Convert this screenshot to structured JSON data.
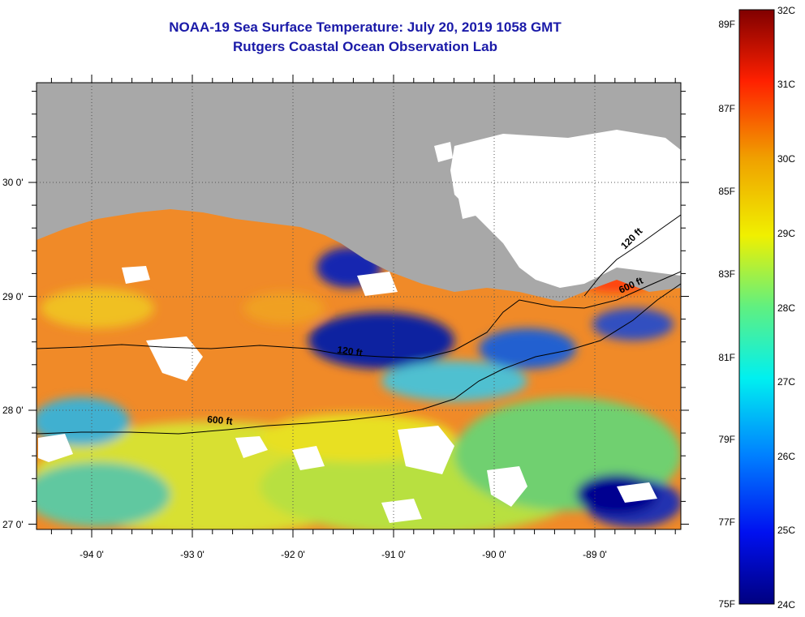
{
  "title": {
    "line1": "NOAA-19 Sea Surface Temperature:  July 20, 2019 1058 GMT",
    "line2": "Rutgers Coastal Ocean Observation Lab"
  },
  "map": {
    "lat_labels": [
      "30 0'",
      "29 0'",
      "28 0'",
      "27 0'"
    ],
    "lon_labels": [
      "-94 0'",
      "-93 0'",
      "-92 0'",
      "-91 0'",
      "-90 0'",
      "-89 0'"
    ],
    "contour_labels": [
      "120 ft",
      "600 ft",
      "120 ft",
      "600 ft"
    ],
    "colors": {
      "land": "#a8a8a8",
      "cloud": "#ffffff",
      "warm": "#f08020",
      "cool": "#2030c0"
    }
  },
  "colorbar": {
    "fahrenheit_labels": [
      "89F",
      "87F",
      "85F",
      "83F",
      "81F",
      "79F",
      "77F",
      "75F"
    ],
    "celsius_labels": [
      "32C",
      "31C",
      "30C",
      "29C",
      "28C",
      "27C",
      "26C",
      "25C",
      "24C"
    ],
    "range_c": [
      24,
      32
    ]
  }
}
